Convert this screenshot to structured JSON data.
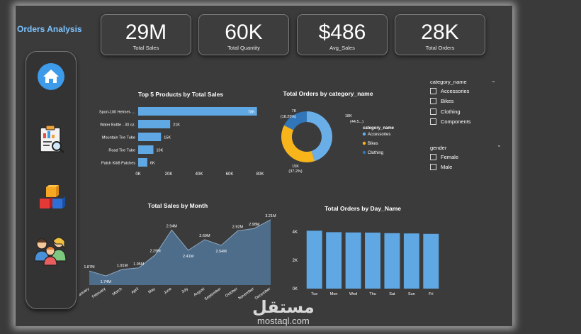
{
  "app_title": "Orders Analysis",
  "kpis": [
    {
      "value": "29M",
      "label": "Total Sales"
    },
    {
      "value": "60K",
      "label": "Total Quantity"
    },
    {
      "value": "$486",
      "label": "Avg_Sales"
    },
    {
      "value": "28K",
      "label": "Total Orders"
    }
  ],
  "nav_icons": [
    "home-icon",
    "report-icon",
    "products-icon",
    "customers-icon"
  ],
  "colors": {
    "bar": "#5fa8e3",
    "area": "#4e6d8a",
    "accessories": "#6aaee8",
    "bikes": "#f7b41b",
    "clothing": "#3176b8"
  },
  "chart_data": [
    {
      "type": "bar",
      "orientation": "horizontal",
      "title": "Top 5 Products by Total Sales",
      "categories": [
        "Sport-100 Helmet- ...",
        "Water Bottle - 30 oz.",
        "Mountain Tire Tube",
        "Road Tire Tube",
        "Patch Kit/8 Patches"
      ],
      "values": [
        78000,
        21000,
        15000,
        10000,
        6000
      ],
      "value_labels": [
        "78K",
        "21K",
        "15K",
        "10K",
        "6K"
      ],
      "ticks": [
        "0K",
        "20K",
        "40K",
        "60K",
        "80K"
      ],
      "xlim": [
        0,
        80000
      ]
    },
    {
      "type": "pie",
      "donut": true,
      "title": "Total Orders by category_name",
      "legend_title": "category_name",
      "legend_position": "right",
      "slices": [
        {
          "name": "Accessories",
          "value": 18000,
          "label": "18K",
          "pct": "(44.5...)"
        },
        {
          "name": "Bikes",
          "value": 15000,
          "label": "15K",
          "pct": "(37.2%)"
        },
        {
          "name": "Clothing",
          "value": 7000,
          "label": "7K",
          "pct": "(18.25%)"
        }
      ]
    },
    {
      "type": "area",
      "title": "Total Sales by Month",
      "categories": [
        "January",
        "February",
        "March",
        "April",
        "May",
        "June",
        "July",
        "August",
        "September",
        "October",
        "November",
        "December"
      ],
      "values": [
        1.87,
        1.74,
        1.91,
        1.95,
        2.29,
        2.94,
        2.41,
        2.69,
        2.54,
        2.92,
        2.98,
        3.21
      ],
      "value_labels": [
        "1.87M",
        "1.74M",
        "1.91M",
        "1.95M",
        "2.29M",
        "2.94M",
        "2.41M",
        "2.69M",
        "2.54M",
        "2.92M",
        "2.98M",
        "3.21M"
      ],
      "ylim": [
        1.5,
        3.3
      ]
    },
    {
      "type": "bar",
      "title": "Total Orders by Day_Name",
      "categories": [
        "Tue",
        "Mon",
        "Wed",
        "Thu",
        "Sat",
        "Sun",
        "Fri"
      ],
      "values": [
        4080,
        3980,
        3960,
        3950,
        3910,
        3890,
        3860
      ],
      "ticks": [
        "0K",
        "2K",
        "4K"
      ],
      "ylim": [
        0,
        4500
      ]
    }
  ],
  "slicers": {
    "category": {
      "title": "category_name",
      "options": [
        "Accessories",
        "Bikes",
        "Clothing",
        "Components"
      ]
    },
    "gender": {
      "title": "gender",
      "options": [
        "Female",
        "Male"
      ]
    }
  },
  "watermark": {
    "arabic": "مستقل",
    "latin": "mostaql.com"
  }
}
